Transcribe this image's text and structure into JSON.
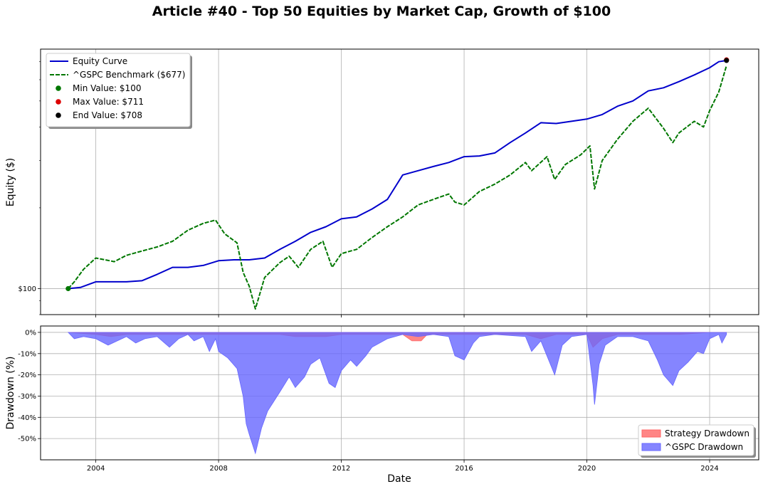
{
  "chart_data": [
    {
      "type": "line",
      "title": "Article #40 - Top 50 Equities by Market Cap, Growth of $100",
      "xlabel": "",
      "ylabel": "Equity ($)",
      "yscale": "log",
      "xlim": [
        2002.2,
        2025.6
      ],
      "ylim": [
        80,
        780
      ],
      "y_tick_labels": [
        {
          "value": 100,
          "label": "$100"
        }
      ],
      "grid": true,
      "legend_position": "top-left",
      "series": [
        {
          "name": "Equity Curve",
          "color": "#0000cc",
          "style": "solid",
          "points": [
            [
              2003.1,
              100
            ],
            [
              2003.5,
              101
            ],
            [
              2004.0,
              106
            ],
            [
              2004.5,
              106
            ],
            [
              2005.0,
              106
            ],
            [
              2005.5,
              107
            ],
            [
              2006.0,
              113
            ],
            [
              2006.5,
              120
            ],
            [
              2007.0,
              120
            ],
            [
              2007.5,
              122
            ],
            [
              2008.0,
              127
            ],
            [
              2008.5,
              128
            ],
            [
              2009.0,
              128
            ],
            [
              2009.5,
              130
            ],
            [
              2010.0,
              140
            ],
            [
              2010.5,
              150
            ],
            [
              2011.0,
              162
            ],
            [
              2011.5,
              170
            ],
            [
              2012.0,
              182
            ],
            [
              2012.5,
              185
            ],
            [
              2013.0,
              198
            ],
            [
              2013.5,
              215
            ],
            [
              2014.0,
              265
            ],
            [
              2014.5,
              275
            ],
            [
              2015.0,
              285
            ],
            [
              2015.5,
              295
            ],
            [
              2016.0,
              310
            ],
            [
              2016.5,
              312
            ],
            [
              2017.0,
              320
            ],
            [
              2017.5,
              350
            ],
            [
              2018.0,
              380
            ],
            [
              2018.5,
              415
            ],
            [
              2019.0,
              412
            ],
            [
              2019.5,
              420
            ],
            [
              2020.0,
              428
            ],
            [
              2020.5,
              445
            ],
            [
              2021.0,
              478
            ],
            [
              2021.5,
              500
            ],
            [
              2022.0,
              545
            ],
            [
              2022.5,
              560
            ],
            [
              2023.0,
              590
            ],
            [
              2023.5,
              625
            ],
            [
              2024.0,
              665
            ],
            [
              2024.3,
              700
            ],
            [
              2024.55,
              708
            ]
          ]
        },
        {
          "name": "^GSPC Benchmark ($677)",
          "color": "#007700",
          "style": "dashed",
          "points": [
            [
              2003.1,
              100
            ],
            [
              2003.3,
              106
            ],
            [
              2003.6,
              118
            ],
            [
              2004.0,
              130
            ],
            [
              2004.3,
              128
            ],
            [
              2004.6,
              126
            ],
            [
              2005.0,
              133
            ],
            [
              2005.5,
              138
            ],
            [
              2006.0,
              143
            ],
            [
              2006.5,
              150
            ],
            [
              2007.0,
              165
            ],
            [
              2007.5,
              175
            ],
            [
              2007.9,
              180
            ],
            [
              2008.2,
              160
            ],
            [
              2008.6,
              148
            ],
            [
              2008.8,
              115
            ],
            [
              2009.0,
              102
            ],
            [
              2009.2,
              84
            ],
            [
              2009.5,
              110
            ],
            [
              2010.0,
              125
            ],
            [
              2010.3,
              132
            ],
            [
              2010.6,
              120
            ],
            [
              2011.0,
              140
            ],
            [
              2011.4,
              150
            ],
            [
              2011.7,
              120
            ],
            [
              2012.0,
              135
            ],
            [
              2012.5,
              140
            ],
            [
              2013.0,
              155
            ],
            [
              2013.5,
              170
            ],
            [
              2014.0,
              185
            ],
            [
              2014.5,
              205
            ],
            [
              2015.0,
              215
            ],
            [
              2015.5,
              225
            ],
            [
              2015.7,
              210
            ],
            [
              2016.0,
              205
            ],
            [
              2016.5,
              230
            ],
            [
              2017.0,
              245
            ],
            [
              2017.5,
              265
            ],
            [
              2018.0,
              295
            ],
            [
              2018.2,
              275
            ],
            [
              2018.7,
              310
            ],
            [
              2018.95,
              255
            ],
            [
              2019.3,
              290
            ],
            [
              2019.8,
              315
            ],
            [
              2020.1,
              340
            ],
            [
              2020.25,
              235
            ],
            [
              2020.5,
              300
            ],
            [
              2021.0,
              360
            ],
            [
              2021.5,
              420
            ],
            [
              2022.0,
              470
            ],
            [
              2022.5,
              395
            ],
            [
              2022.8,
              350
            ],
            [
              2023.0,
              380
            ],
            [
              2023.5,
              420
            ],
            [
              2023.8,
              400
            ],
            [
              2024.0,
              460
            ],
            [
              2024.3,
              540
            ],
            [
              2024.55,
              677
            ]
          ]
        },
        {
          "name": "Min Value: $100",
          "color": "#007700",
          "style": "marker",
          "points": [
            [
              2003.1,
              100
            ]
          ]
        },
        {
          "name": "Max Value: $711",
          "color": "#dd0000",
          "style": "marker",
          "points": [
            [
              2024.55,
              711
            ]
          ]
        },
        {
          "name": "End Value: $708",
          "color": "#000000",
          "style": "marker",
          "points": [
            [
              2024.55,
              708
            ]
          ]
        }
      ]
    },
    {
      "type": "area",
      "title": "",
      "xlabel": "Date",
      "ylabel": "Drawdown (%)",
      "xlim": [
        2002.2,
        2025.6
      ],
      "ylim": [
        -60,
        3
      ],
      "x_ticks": [
        2004,
        2008,
        2012,
        2016,
        2020,
        2024
      ],
      "y_ticks": [
        0,
        -10,
        -20,
        -30,
        -40,
        -50
      ],
      "y_tick_labels": [
        "0%",
        "-10%",
        "-20%",
        "-30%",
        "-40%",
        "-50%"
      ],
      "grid": true,
      "legend_position": "bottom-right",
      "series": [
        {
          "name": "Strategy Drawdown",
          "color": "#ff6666",
          "points": [
            [
              2003.1,
              0
            ],
            [
              2004.0,
              -1
            ],
            [
              2004.5,
              -2
            ],
            [
              2005.0,
              -1
            ],
            [
              2006.0,
              -1
            ],
            [
              2007.0,
              -1
            ],
            [
              2008.0,
              -1
            ],
            [
              2009.0,
              -1
            ],
            [
              2010.0,
              -1
            ],
            [
              2010.5,
              -2
            ],
            [
              2011.5,
              -2
            ],
            [
              2012.0,
              -1
            ],
            [
              2013.0,
              -1
            ],
            [
              2014.0,
              -1
            ],
            [
              2014.3,
              -4
            ],
            [
              2014.6,
              -4
            ],
            [
              2014.8,
              -1
            ],
            [
              2016.0,
              -1
            ],
            [
              2018.0,
              -1
            ],
            [
              2018.5,
              -3
            ],
            [
              2019.0,
              -1
            ],
            [
              2020.0,
              -1
            ],
            [
              2020.2,
              -7
            ],
            [
              2020.5,
              -3
            ],
            [
              2021.0,
              -1
            ],
            [
              2022.0,
              -1
            ],
            [
              2023.0,
              -1
            ],
            [
              2024.0,
              0
            ],
            [
              2024.55,
              0
            ]
          ]
        },
        {
          "name": "^GSPC Drawdown",
          "color": "#6666ff",
          "points": [
            [
              2003.1,
              0
            ],
            [
              2003.3,
              -3
            ],
            [
              2003.6,
              -2
            ],
            [
              2004.0,
              -3
            ],
            [
              2004.4,
              -6
            ],
            [
              2004.7,
              -4
            ],
            [
              2005.0,
              -2
            ],
            [
              2005.3,
              -5
            ],
            [
              2005.6,
              -3
            ],
            [
              2006.0,
              -2
            ],
            [
              2006.4,
              -7
            ],
            [
              2006.7,
              -3
            ],
            [
              2007.0,
              -1
            ],
            [
              2007.2,
              -4
            ],
            [
              2007.5,
              -2
            ],
            [
              2007.7,
              -9
            ],
            [
              2007.9,
              -3
            ],
            [
              2008.0,
              -9
            ],
            [
              2008.3,
              -12
            ],
            [
              2008.6,
              -17
            ],
            [
              2008.8,
              -30
            ],
            [
              2008.9,
              -43
            ],
            [
              2009.0,
              -48
            ],
            [
              2009.2,
              -57
            ],
            [
              2009.4,
              -45
            ],
            [
              2009.6,
              -37
            ],
            [
              2010.0,
              -28
            ],
            [
              2010.3,
              -21
            ],
            [
              2010.5,
              -26
            ],
            [
              2010.8,
              -21
            ],
            [
              2011.0,
              -15
            ],
            [
              2011.3,
              -12
            ],
            [
              2011.6,
              -24
            ],
            [
              2011.8,
              -26
            ],
            [
              2012.0,
              -18
            ],
            [
              2012.3,
              -13
            ],
            [
              2012.5,
              -16
            ],
            [
              2012.8,
              -11
            ],
            [
              2013.0,
              -7
            ],
            [
              2013.5,
              -3
            ],
            [
              2014.0,
              -1
            ],
            [
              2014.5,
              -2
            ],
            [
              2015.0,
              -1
            ],
            [
              2015.5,
              -2
            ],
            [
              2015.7,
              -11
            ],
            [
              2016.0,
              -13
            ],
            [
              2016.3,
              -5
            ],
            [
              2016.5,
              -2
            ],
            [
              2017.0,
              -1
            ],
            [
              2018.0,
              -2
            ],
            [
              2018.2,
              -9
            ],
            [
              2018.5,
              -4
            ],
            [
              2018.95,
              -20
            ],
            [
              2019.2,
              -6
            ],
            [
              2019.5,
              -2
            ],
            [
              2020.0,
              -1
            ],
            [
              2020.2,
              -25
            ],
            [
              2020.25,
              -34
            ],
            [
              2020.4,
              -15
            ],
            [
              2020.6,
              -6
            ],
            [
              2021.0,
              -2
            ],
            [
              2021.5,
              -2
            ],
            [
              2022.0,
              -4
            ],
            [
              2022.3,
              -13
            ],
            [
              2022.5,
              -20
            ],
            [
              2022.8,
              -25
            ],
            [
              2023.0,
              -18
            ],
            [
              2023.3,
              -14
            ],
            [
              2023.6,
              -9
            ],
            [
              2023.8,
              -10
            ],
            [
              2024.0,
              -3
            ],
            [
              2024.3,
              -1
            ],
            [
              2024.4,
              -5
            ],
            [
              2024.55,
              -1
            ]
          ]
        }
      ]
    }
  ]
}
